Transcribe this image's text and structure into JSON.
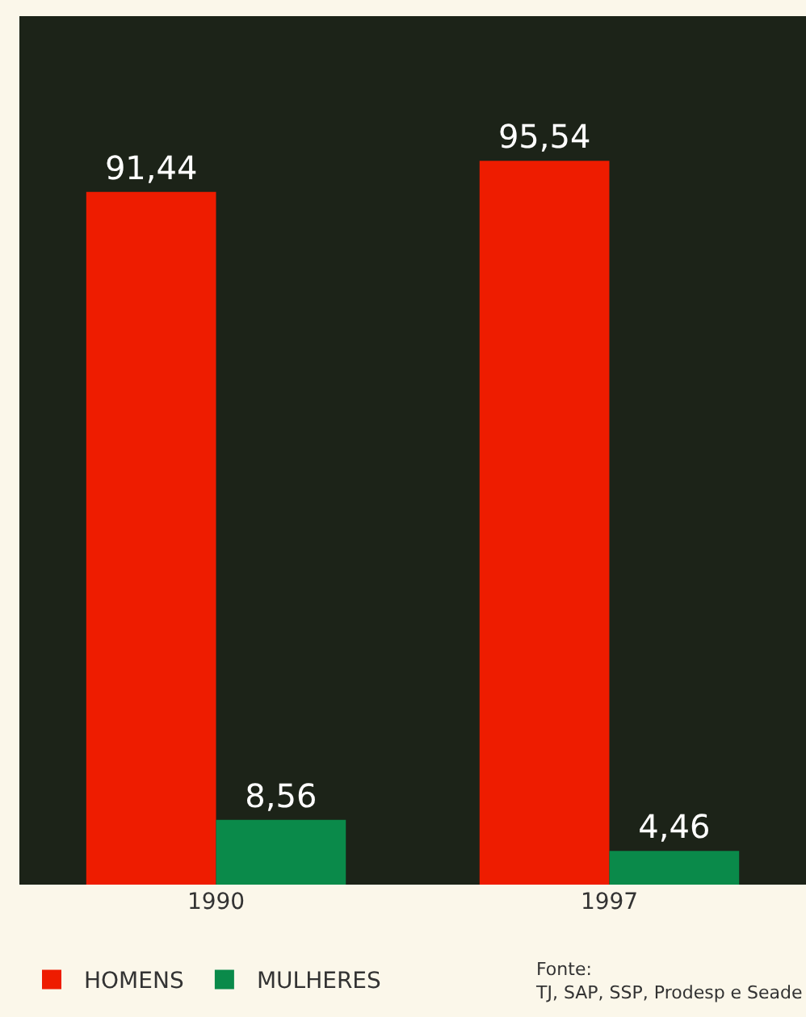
{
  "chart_data": {
    "type": "bar",
    "categories": [
      "1990",
      "1997"
    ],
    "series": [
      {
        "name": "HOMENS",
        "color": "#ee1c00",
        "values": [
          91.44,
          95.54
        ],
        "value_labels": [
          "91,44",
          "95,54"
        ]
      },
      {
        "name": "MULHERES",
        "color": "#0a8a4a",
        "values": [
          8.56,
          4.46
        ],
        "value_labels": [
          "8,56",
          "4,46"
        ]
      }
    ],
    "legend": "bottom left",
    "annotations": [
      "Fonte:\nTJ, SAP, SSP, Prodesp e Seade"
    ]
  }
}
